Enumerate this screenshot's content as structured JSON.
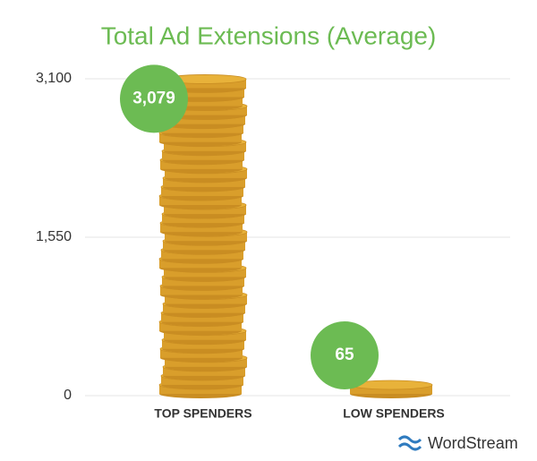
{
  "chart_data": {
    "type": "bar",
    "title": "Total Ad Extensions (Average)",
    "categories": [
      "TOP SPENDERS",
      "LOW SPENDERS"
    ],
    "values": [
      3079,
      65
    ],
    "value_labels": [
      "3,079",
      "65"
    ],
    "color": "#e8b23a",
    "label_color": "#6cbb53",
    "ylim": [
      0,
      3100
    ],
    "yticks": [
      0,
      {
        "value": 1550,
        "label": "1,550"
      },
      {
        "value": 3100,
        "label": "3,100"
      }
    ],
    "grid": true,
    "brand": "WordStream"
  }
}
